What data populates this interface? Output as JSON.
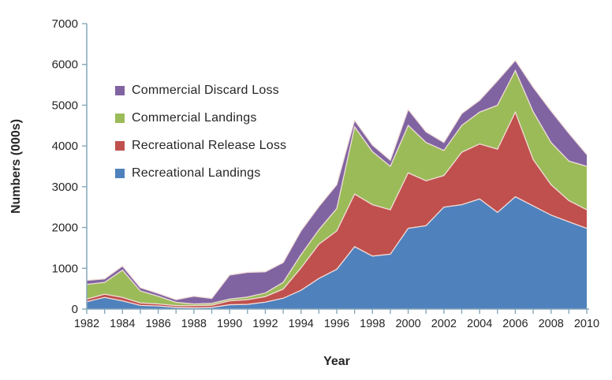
{
  "figure": {
    "background": "#ffffff"
  },
  "chart_data": {
    "type": "area",
    "stacked": true,
    "title": "",
    "xlabel": "Year",
    "ylabel": "Numbers (000s)",
    "x": [
      1982,
      1983,
      1984,
      1985,
      1986,
      1987,
      1988,
      1989,
      1990,
      1991,
      1992,
      1993,
      1994,
      1995,
      1996,
      1997,
      1998,
      1999,
      2000,
      2001,
      2002,
      2003,
      2004,
      2005,
      2006,
      2007,
      2008,
      2009,
      2010
    ],
    "x_tick_label_step": 2,
    "ylim": [
      0,
      7000
    ],
    "y_ticks": [
      0,
      1000,
      2000,
      3000,
      4000,
      5000,
      6000,
      7000
    ],
    "grid": false,
    "legend_position": "inside-top-left",
    "legend_order": [
      "Commercial Discard Loss",
      "Commercial Landings",
      "Recreational Release Loss",
      "Recreational Landings"
    ],
    "series": [
      {
        "name": "Recreational Landings",
        "color": "#4f81bd",
        "values": [
          180,
          285,
          200,
          90,
          75,
          40,
          30,
          40,
          105,
          115,
          170,
          265,
          460,
          750,
          975,
          1530,
          1300,
          1345,
          1980,
          2045,
          2500,
          2560,
          2700,
          2370,
          2755,
          2530,
          2305,
          2140,
          1980
        ]
      },
      {
        "name": "Recreational Release Loss",
        "color": "#c0504d",
        "values": [
          65,
          80,
          85,
          60,
          50,
          45,
          55,
          55,
          95,
          115,
          135,
          225,
          550,
          840,
          940,
          1290,
          1260,
          1090,
          1360,
          1100,
          775,
          1285,
          1350,
          1550,
          2075,
          1135,
          745,
          520,
          455
        ]
      },
      {
        "name": "Commercial Landings",
        "color": "#9bbb59",
        "values": [
          360,
          290,
          670,
          295,
          190,
          80,
          40,
          45,
          45,
          65,
          90,
          165,
          325,
          355,
          550,
          1650,
          1300,
          1065,
          1165,
          940,
          615,
          660,
          780,
          1080,
          1020,
          1175,
          1035,
          970,
          1065
        ]
      },
      {
        "name": "Commercial Discard Loss",
        "color": "#8064a2",
        "values": [
          100,
          85,
          100,
          80,
          70,
          65,
          190,
          120,
          590,
          605,
          520,
          485,
          585,
          570,
          585,
          160,
          160,
          150,
          390,
          260,
          195,
          290,
          290,
          600,
          250,
          600,
          775,
          680,
          290
        ]
      }
    ],
    "axis_color": "#86a7ba",
    "separator_color": "#f2ded9",
    "text_color": "#262626"
  }
}
